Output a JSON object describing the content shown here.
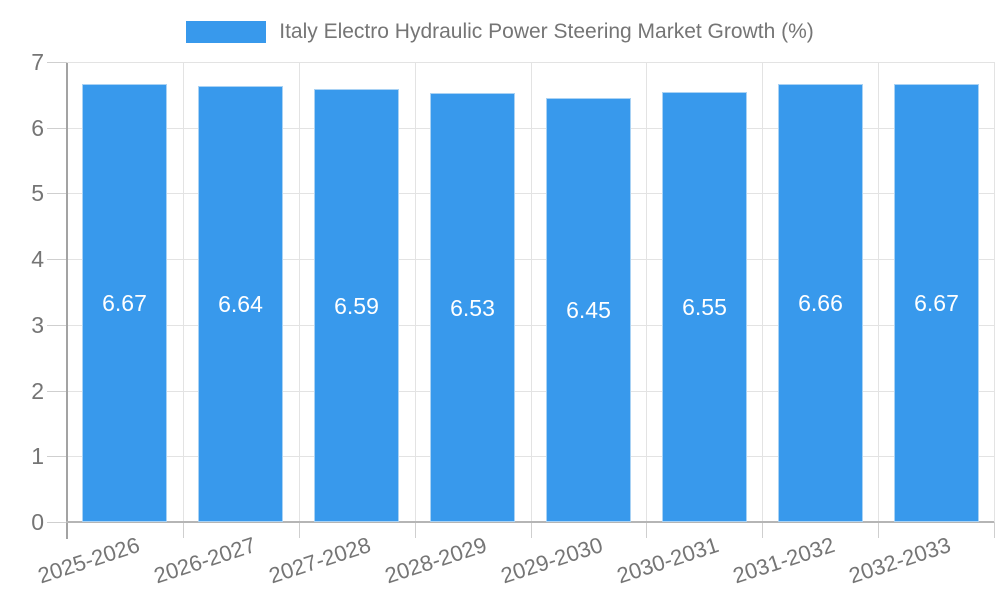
{
  "legend": {
    "label": "Italy Electro Hydraulic Power Steering Market Growth (%)"
  },
  "chart_data": {
    "type": "bar",
    "title": "Italy Electro Hydraulic Power Steering Market Growth (%)",
    "series_name": "Italy Electro Hydraulic Power Steering Market Growth (%)",
    "categories": [
      "2025-2026",
      "2026-2027",
      "2027-2028",
      "2028-2029",
      "2029-2030",
      "2030-2031",
      "2031-2032",
      "2032-2033"
    ],
    "values": [
      6.67,
      6.64,
      6.59,
      6.53,
      6.45,
      6.55,
      6.66,
      6.67
    ],
    "value_labels": [
      "6.67",
      "6.64",
      "6.59",
      "6.53",
      "6.45",
      "6.55",
      "6.66",
      "6.67"
    ],
    "xlabel": "",
    "ylabel": "",
    "ylim": [
      0,
      7
    ],
    "yticks": [
      0,
      1,
      2,
      3,
      4,
      5,
      6,
      7
    ],
    "grid": true,
    "legend_position": "top",
    "data_labels": "inside-center",
    "x_label_rotation_deg": -18
  },
  "colors": {
    "bar": "#3899ec",
    "bar_edge": "#a9d2f4",
    "data_label": "#ffffff",
    "axis_text": "#757575",
    "grid_line": "#e3e3e3",
    "tick_line": "#cfcfcf",
    "axis_line": "#a3a3a3",
    "baseline": "#b5b5b5",
    "background": "#ffffff"
  }
}
